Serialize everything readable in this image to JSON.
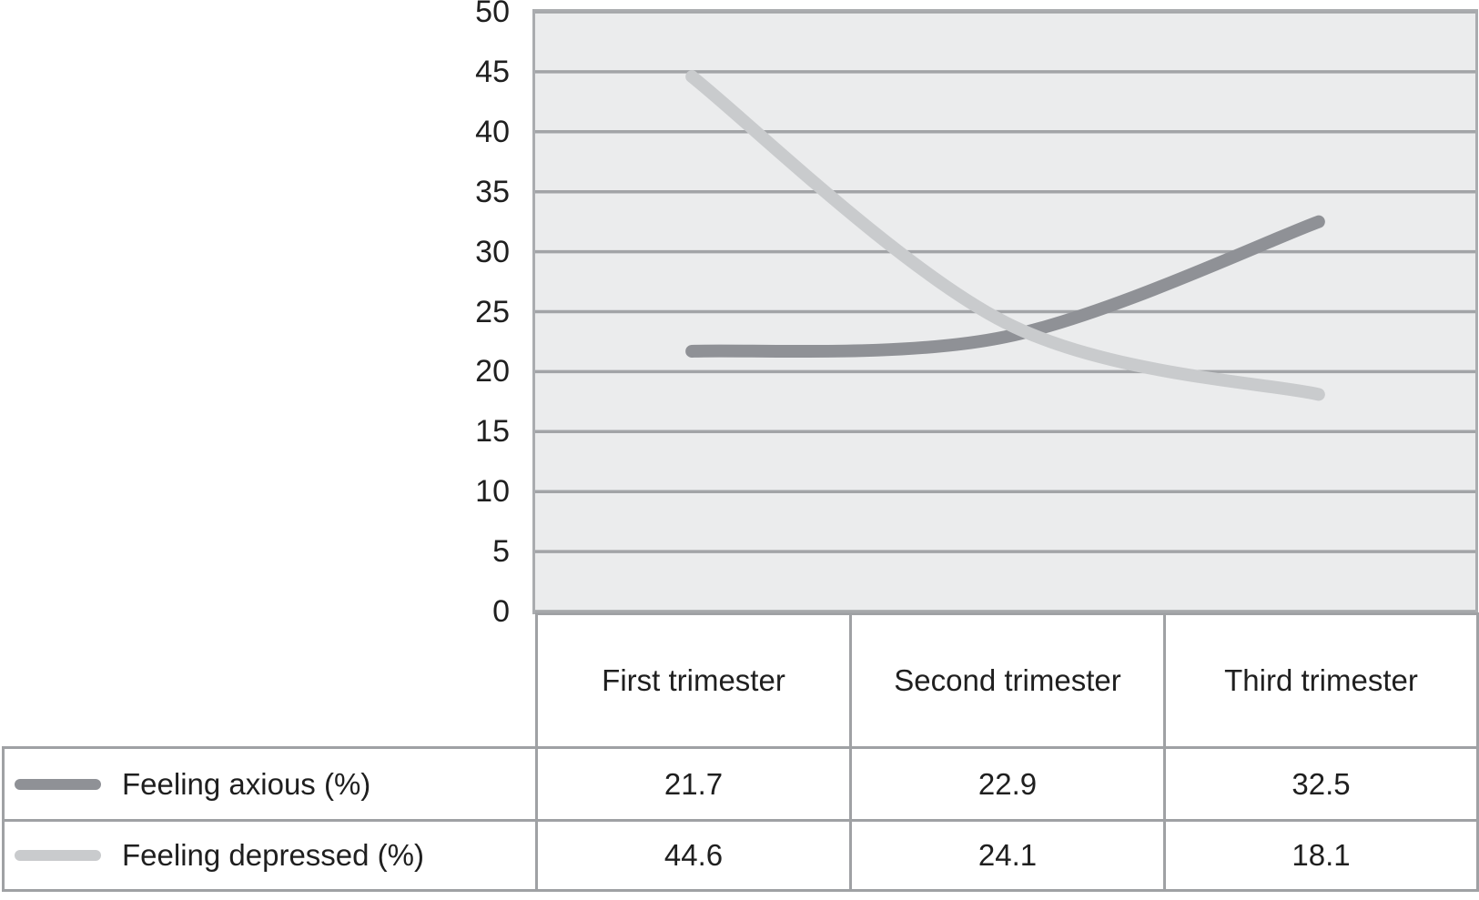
{
  "colors": {
    "page_background": "#ffffff",
    "plot_background": "#ebeced",
    "gridline": "#a2a4a7",
    "plot_border": "#aaacaf",
    "table_border": "#9fa1a4",
    "text": "#1f1f1f",
    "series_anxious": "#8f9196",
    "series_depressed": "#c9cbcd"
  },
  "chart_data": {
    "type": "line",
    "title": "",
    "xlabel": "",
    "ylabel": "",
    "categories": [
      "First trimester",
      "Second trimester",
      "Third trimester"
    ],
    "series": [
      {
        "name": "Feeling axious (%)",
        "values": [
          21.7,
          22.9,
          32.5
        ],
        "color": "#8f9196"
      },
      {
        "name": "Feeling depressed (%)",
        "values": [
          44.6,
          24.1,
          18.1
        ],
        "color": "#c9cbcd"
      }
    ],
    "ylim": [
      0,
      50
    ],
    "ytick_step": 5,
    "ytick_labels": [
      "0",
      "5",
      "10",
      "15",
      "20",
      "25",
      "30",
      "35",
      "40",
      "45",
      "50"
    ],
    "grid": true,
    "smooth": true,
    "line_width": 14,
    "legend_position": "table-left"
  }
}
